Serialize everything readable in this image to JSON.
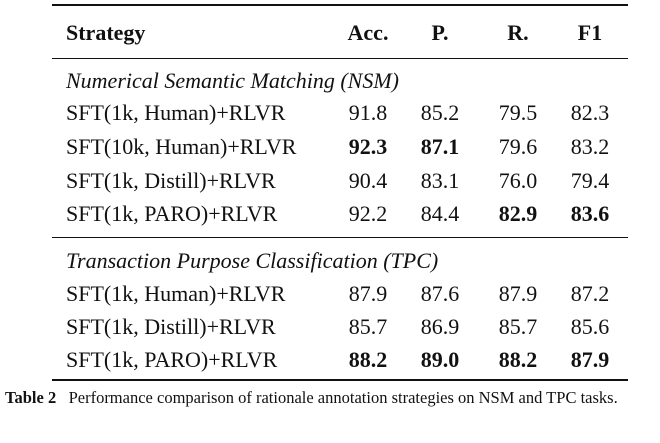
{
  "table": {
    "header": [
      "Strategy",
      "Acc.",
      "P.",
      "R.",
      "F1"
    ],
    "sections": [
      {
        "title": "Numerical Semantic Matching (NSM)",
        "rows": [
          {
            "strategy": "SFT(1k, Human)+RLVR",
            "values": [
              "91.8",
              "85.2",
              "79.5",
              "82.3"
            ],
            "bold": [
              false,
              false,
              false,
              false
            ]
          },
          {
            "strategy": "SFT(10k, Human)+RLVR",
            "values": [
              "92.3",
              "87.1",
              "79.6",
              "83.2"
            ],
            "bold": [
              true,
              true,
              false,
              false
            ]
          },
          {
            "strategy": "SFT(1k, Distill)+RLVR",
            "values": [
              "90.4",
              "83.1",
              "76.0",
              "79.4"
            ],
            "bold": [
              false,
              false,
              false,
              false
            ]
          },
          {
            "strategy": "SFT(1k, PARO)+RLVR",
            "values": [
              "92.2",
              "84.4",
              "82.9",
              "83.6"
            ],
            "bold": [
              false,
              false,
              true,
              true
            ]
          }
        ]
      },
      {
        "title": "Transaction Purpose Classification (TPC)",
        "rows": [
          {
            "strategy": "SFT(1k, Human)+RLVR",
            "values": [
              "87.9",
              "87.6",
              "87.9",
              "87.2"
            ],
            "bold": [
              false,
              false,
              false,
              false
            ]
          },
          {
            "strategy": "SFT(1k, Distill)+RLVR",
            "values": [
              "85.7",
              "86.9",
              "85.7",
              "85.6"
            ],
            "bold": [
              false,
              false,
              false,
              false
            ]
          },
          {
            "strategy": "SFT(1k, PARO)+RLVR",
            "values": [
              "88.2",
              "89.0",
              "88.2",
              "87.9"
            ],
            "bold": [
              true,
              true,
              true,
              true
            ]
          }
        ]
      }
    ]
  },
  "caption": {
    "label": "Table 2",
    "text": "Performance comparison of rationale annotation strategies on NSM and TPC tasks."
  }
}
